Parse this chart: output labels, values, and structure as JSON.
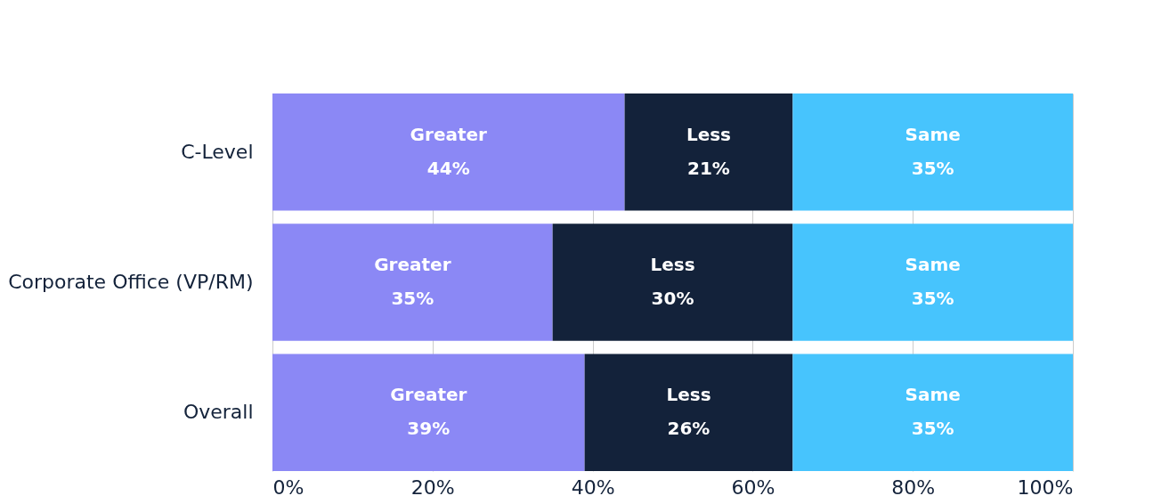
{
  "chart_data": {
    "type": "bar",
    "orientation": "horizontal",
    "stacked": true,
    "categories": [
      "C-Level",
      "Corporate Office (VP/RM)",
      "Overall"
    ],
    "series": [
      {
        "name": "Greater",
        "color": "#8b88f5",
        "values": [
          44,
          35,
          39
        ],
        "value_labels": [
          "44%",
          "35%",
          "39%"
        ]
      },
      {
        "name": "Less",
        "color": "#13223a",
        "values": [
          21,
          30,
          26
        ],
        "value_labels": [
          "21%",
          "30%",
          "26%"
        ]
      },
      {
        "name": "Same",
        "color": "#47c4fd",
        "values": [
          35,
          35,
          35
        ],
        "value_labels": [
          "35%",
          "35%",
          "35%"
        ]
      }
    ],
    "xlim": [
      0,
      100
    ],
    "xticks": [
      {
        "value": 0,
        "label": "0%"
      },
      {
        "value": 20,
        "label": "20%"
      },
      {
        "value": 40,
        "label": "40%"
      },
      {
        "value": 60,
        "label": "60%"
      },
      {
        "value": 80,
        "label": "80%"
      },
      {
        "value": 100,
        "label": "100%"
      }
    ],
    "grid": "x",
    "legend": false
  }
}
